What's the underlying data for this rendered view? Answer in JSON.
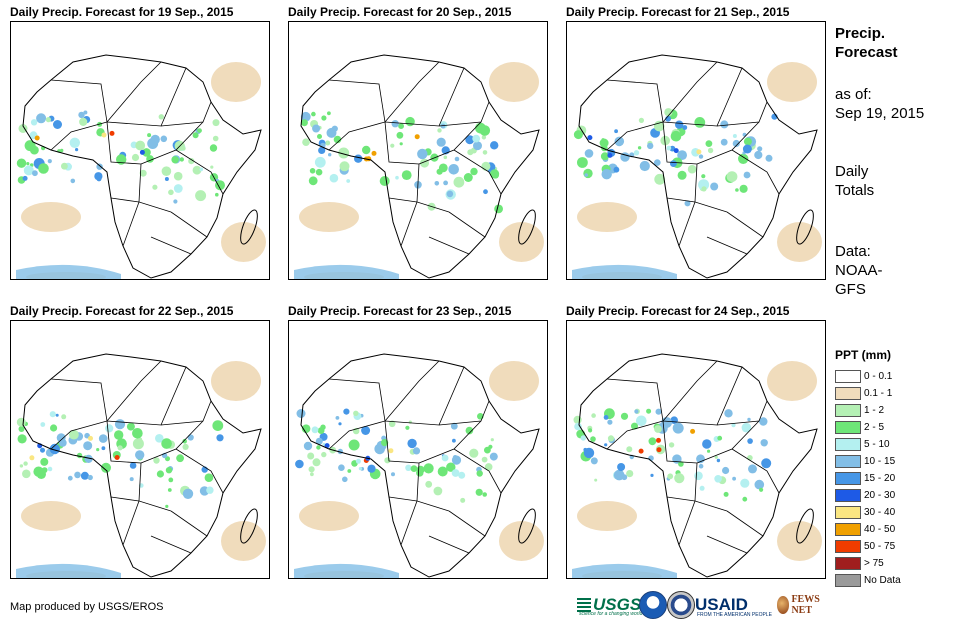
{
  "panels": [
    {
      "title": "Daily Precip. Forecast for 19 Sep., 2015"
    },
    {
      "title": "Daily Precip. Forecast for 20 Sep., 2015"
    },
    {
      "title": "Daily Precip. Forecast for 21 Sep., 2015"
    },
    {
      "title": "Daily Precip. Forecast for 22 Sep., 2015"
    },
    {
      "title": "Daily Precip. Forecast for 23 Sep., 2015"
    },
    {
      "title": "Daily Precip. Forecast for 24 Sep., 2015"
    }
  ],
  "sidebar": {
    "title_line1": "Precip.",
    "title_line2": "Forecast",
    "asof_line1": "as of:",
    "asof_line2": "Sep 19, 2015",
    "totals_line1": "Daily",
    "totals_line2": "Totals",
    "data_line1": "Data:",
    "data_line2": "NOAA-",
    "data_line3": "GFS"
  },
  "legend": {
    "title": "PPT (mm)",
    "items": [
      {
        "label": "0 - 0.1",
        "color": "#ffffff"
      },
      {
        "label": "0.1 - 1",
        "color": "#f0dcbc"
      },
      {
        "label": "1 - 2",
        "color": "#b4f0b4"
      },
      {
        "label": "2 - 5",
        "color": "#6ee678"
      },
      {
        "label": "5 - 10",
        "color": "#b4f0f0"
      },
      {
        "label": "10 - 15",
        "color": "#82bee6"
      },
      {
        "label": "15 - 20",
        "color": "#4696e6"
      },
      {
        "label": "20 - 30",
        "color": "#1e5ae6"
      },
      {
        "label": "30 - 40",
        "color": "#fae682"
      },
      {
        "label": "40 - 50",
        "color": "#f0a000"
      },
      {
        "label": "50 - 75",
        "color": "#f03c00"
      },
      {
        "label": "> 75",
        "color": "#a01e1e"
      },
      {
        "label": "No Data",
        "color": "#9a9a9a"
      }
    ]
  },
  "footer": {
    "credit": "Map produced by USGS/EROS"
  },
  "logos": {
    "usgs": "USGS",
    "usgs_tagline": "science for a changing world",
    "noaa_icon": "noaa-logo-icon",
    "dhs_icon": "seal-icon",
    "usaid": "USAID",
    "usaid_tagline": "FROM THE AMERICAN PEOPLE",
    "fews": "FEWS NET"
  }
}
